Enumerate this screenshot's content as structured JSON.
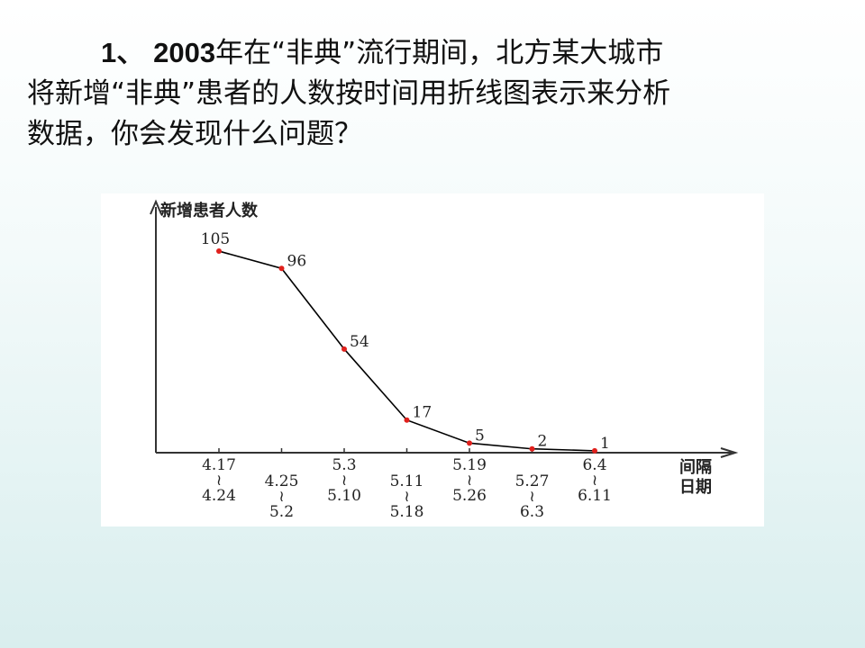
{
  "question": {
    "number": "1、",
    "year": "2003",
    "lines": [
      "年在“非典”流行期间，北方某大城市",
      "将新增“非典”患者的人数按时间用折线图表示来分析",
      "数据，你会发现什么问题？"
    ]
  },
  "chart_data": {
    "type": "line",
    "y_label": "新增患者人数",
    "x_label": [
      "间隔",
      "日期"
    ],
    "categories": [
      [
        "4.17",
        "≀",
        "4.24"
      ],
      [
        "4.25",
        "≀",
        "5.2"
      ],
      [
        "5.3",
        "≀",
        "5.10"
      ],
      [
        "5.11",
        "≀",
        "5.18"
      ],
      [
        "5.19",
        "≀",
        "5.26"
      ],
      [
        "5.27",
        "≀",
        "6.3"
      ],
      [
        "6.4",
        "≀",
        "6.11"
      ]
    ],
    "values": [
      105,
      96,
      54,
      17,
      5,
      2,
      1
    ],
    "ylim": [
      0,
      128
    ],
    "color": "#000000",
    "marker_color": "#e0201c"
  }
}
